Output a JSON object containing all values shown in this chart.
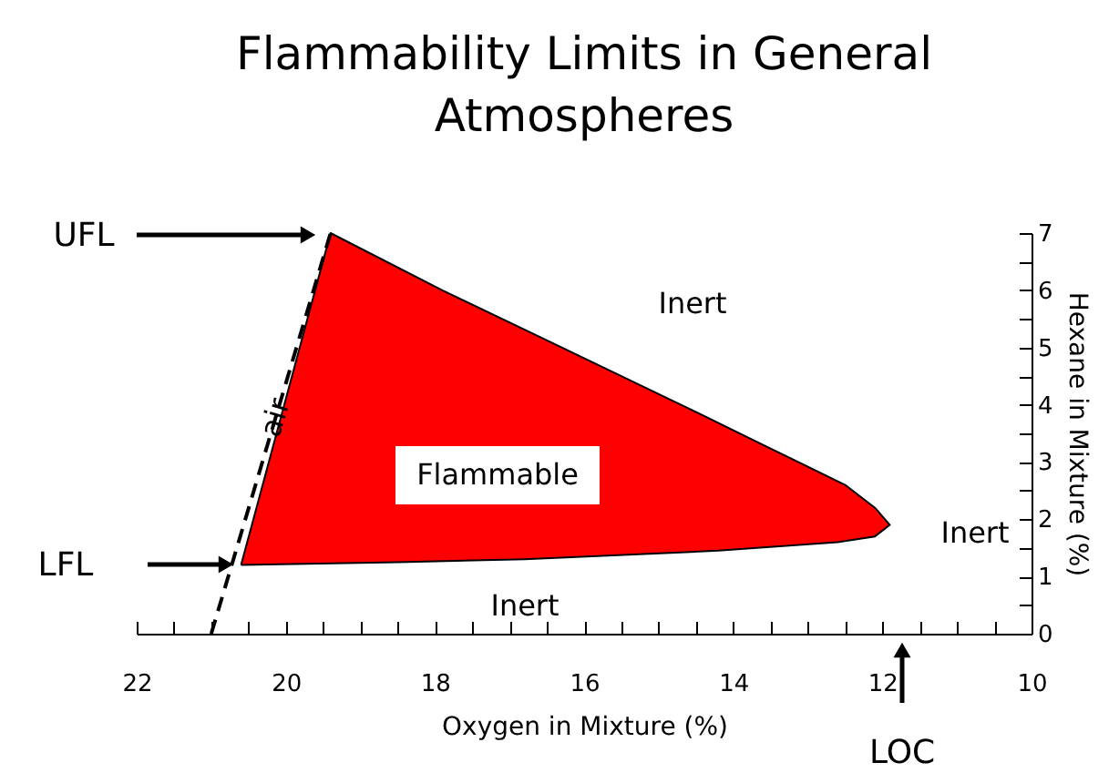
{
  "chart_data": {
    "type": "area",
    "title": "Flammability Limits in General Atmospheres",
    "xlabel": "Oxygen in Mixture (%)",
    "ylabel": "Hexane in Mixture (%)",
    "xlim": [
      22,
      10
    ],
    "ylim": [
      0,
      7
    ],
    "xticks": [
      22,
      {
        "value": 21.5,
        "label": null
      },
      {
        "value": 21,
        "label": null
      },
      {
        "value": 20.5,
        "label": null
      },
      20,
      {
        "value": 19.5,
        "label": null
      },
      {
        "value": 19,
        "label": null
      },
      {
        "value": 18.5,
        "label": null
      },
      18,
      {
        "value": 17.5,
        "label": null
      },
      {
        "value": 17,
        "label": null
      },
      {
        "value": 16.5,
        "label": null
      },
      16,
      {
        "value": 15.5,
        "label": null
      },
      {
        "value": 15,
        "label": null
      },
      {
        "value": 14.5,
        "label": null
      },
      14,
      {
        "value": 13.5,
        "label": null
      },
      {
        "value": 13,
        "label": null
      },
      {
        "value": 12.5,
        "label": null
      },
      12,
      {
        "value": 11.5,
        "label": null
      },
      {
        "value": 11,
        "label": null
      },
      {
        "value": 10.5,
        "label": null
      },
      10
    ],
    "yticks": [
      0,
      {
        "value": 0.5,
        "label": null
      },
      1,
      {
        "value": 1.5,
        "label": null
      },
      2,
      {
        "value": 2.5,
        "label": null
      },
      3,
      {
        "value": 3.5,
        "label": null
      },
      4,
      {
        "value": 4.5,
        "label": null
      },
      5,
      {
        "value": 5.5,
        "label": null
      },
      6,
      {
        "value": 6.5,
        "label": null
      },
      7
    ],
    "grid": false,
    "series": [
      {
        "color": "#ff0000",
        "x": [
          20.6,
          19.4,
          17.9,
          16.3,
          14.7,
          13.6,
          12.5,
          12.1,
          11.9,
          12.1,
          12.6,
          14.2,
          16.8,
          18.5,
          20.6
        ],
        "values": [
          1.2,
          7.0,
          6.0,
          5.0,
          4.0,
          3.3,
          2.6,
          2.2,
          1.9,
          1.7,
          1.6,
          1.45,
          1.3,
          1.25,
          1.2
        ]
      },
      {
        "type": "line",
        "name": "air",
        "color": "#000000",
        "line_style": "dashed",
        "x": [
          21.0,
          19.4
        ],
        "values": [
          0,
          7.0
        ]
      }
    ],
    "annotations": [
      "UFL",
      "LFL",
      "LOC",
      "Inert",
      "Inert",
      "Inert",
      "Flammable"
    ]
  }
}
